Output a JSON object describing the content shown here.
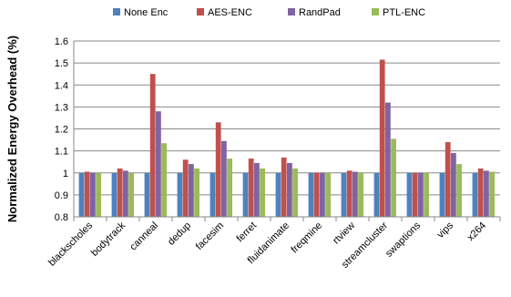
{
  "chart_data": {
    "type": "bar",
    "title": "",
    "xlabel": "",
    "ylabel": "Normalized Energy Overhead (%)",
    "ylim": [
      0.8,
      1.6
    ],
    "yticks": [
      "0.8",
      "0.9",
      "1",
      "1.1",
      "1.2",
      "1.3",
      "1.4",
      "1.5",
      "1.6"
    ],
    "grid": true,
    "legend_position": "top",
    "categories": [
      "blackscholes",
      "bodytrack",
      "canneal",
      "dedup",
      "facesim",
      "ferret",
      "fluidanimate",
      "freqmine",
      "rtview",
      "streamcluster",
      "swaptions",
      "vips",
      "x264"
    ],
    "series": [
      {
        "name": "None Enc",
        "color": "#4F81BD",
        "values": [
          1,
          1,
          1,
          1,
          1,
          1,
          1,
          1,
          1,
          1,
          1,
          1,
          1
        ]
      },
      {
        "name": "AES-ENC",
        "color": "#C0504D",
        "values": [
          1.005,
          1.02,
          1.45,
          1.06,
          1.23,
          1.065,
          1.07,
          1.0,
          1.01,
          1.515,
          1.0,
          1.14,
          1.02
        ]
      },
      {
        "name": "RandPad",
        "color": "#8064A2",
        "values": [
          1.0,
          1.01,
          1.28,
          1.04,
          1.145,
          1.045,
          1.045,
          1.0,
          1.005,
          1.32,
          1.0,
          1.09,
          1.01
        ]
      },
      {
        "name": "PTL-ENC",
        "color": "#9BBB59",
        "values": [
          1.0,
          1.0,
          1.135,
          1.02,
          1.065,
          1.02,
          1.02,
          1.0,
          1.0,
          1.155,
          1.0,
          1.04,
          1.005
        ]
      }
    ]
  }
}
